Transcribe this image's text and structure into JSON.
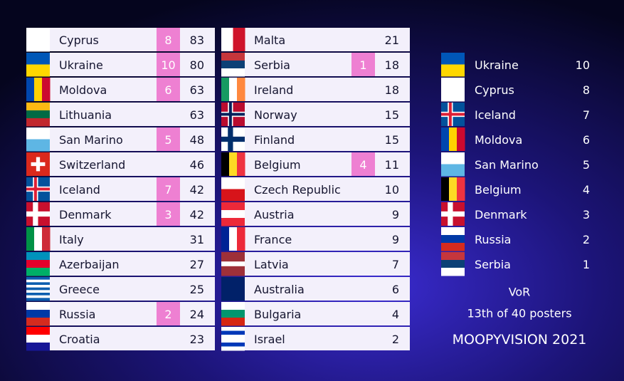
{
  "scoreboard": {
    "rows": [
      {
        "country": "Cyprus",
        "points": 8,
        "total": 83
      },
      {
        "country": "Ukraine",
        "points": 10,
        "total": 80
      },
      {
        "country": "Moldova",
        "points": 6,
        "total": 63
      },
      {
        "country": "Lithuania",
        "total": 63
      },
      {
        "country": "San Marino",
        "points": 5,
        "total": 48
      },
      {
        "country": "Switzerland",
        "total": 46
      },
      {
        "country": "Iceland",
        "points": 7,
        "total": 42
      },
      {
        "country": "Denmark",
        "points": 3,
        "total": 42
      },
      {
        "country": "Italy",
        "total": 31
      },
      {
        "country": "Azerbaijan",
        "total": 27
      },
      {
        "country": "Greece",
        "total": 25
      },
      {
        "country": "Russia",
        "points": 2,
        "total": 24
      },
      {
        "country": "Croatia",
        "total": 23
      },
      {
        "country": "Malta",
        "total": 21
      },
      {
        "country": "Serbia",
        "points": 1,
        "total": 18
      },
      {
        "country": "Ireland",
        "total": 18
      },
      {
        "country": "Norway",
        "total": 15
      },
      {
        "country": "Finland",
        "total": 15
      },
      {
        "country": "Belgium",
        "points": 4,
        "total": 11
      },
      {
        "country": "Czech Republic",
        "total": 10
      },
      {
        "country": "Austria",
        "total": 9
      },
      {
        "country": "France",
        "total": 9
      },
      {
        "country": "Latvia",
        "total": 7
      },
      {
        "country": "Australia",
        "total": 6
      },
      {
        "country": "Bulgaria",
        "total": 4
      },
      {
        "country": "Israel",
        "total": 2
      }
    ]
  },
  "votes": {
    "rows": [
      {
        "country": "Ukraine",
        "points": 10
      },
      {
        "country": "Cyprus",
        "points": 8
      },
      {
        "country": "Iceland",
        "points": 7
      },
      {
        "country": "Moldova",
        "points": 6
      },
      {
        "country": "San Marino",
        "points": 5
      },
      {
        "country": "Belgium",
        "points": 4
      },
      {
        "country": "Denmark",
        "points": 3
      },
      {
        "country": "Russia",
        "points": 2
      },
      {
        "country": "Serbia",
        "points": 1
      }
    ]
  },
  "footer": {
    "voter": "VoR",
    "progress": "13th of 40 posters",
    "title": "MOOPYVISION 2021"
  }
}
